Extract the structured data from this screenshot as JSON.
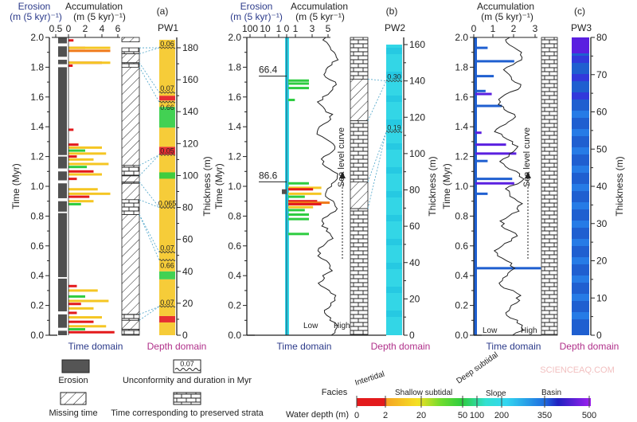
{
  "colors": {
    "erosion": "#505050",
    "red": "#e31a1c",
    "orange": "#f07a1a",
    "yellow": "#f5c623",
    "green": "#2ecc40",
    "cyan": "#33d6e6",
    "blue": "#1f5fd0",
    "purple": "#5a1fe0",
    "axisBlue": "#2b3a8a",
    "domainPink": "#b0308a",
    "corr": "#4aa3c8"
  },
  "panels": {
    "a": {
      "label": "(a)",
      "well": "PW1",
      "erosion_title": "Erosion",
      "erosion_unit": "(m (5 kyr)⁻¹)",
      "acc_title": "Accumulation",
      "acc_unit": "(m (5 kyr)⁻¹)",
      "time_domain": "Time domain",
      "depth_domain": "Depth domain",
      "time_axis": "Time (Myr)",
      "thickness_axis": "Thickness (m)"
    },
    "b": {
      "label": "(b)",
      "well": "PW2",
      "erosion_title": "Erosion",
      "erosion_unit": "(m (5 kyr)⁻¹)",
      "acc_title": "Accumulation",
      "acc_unit": "(m (5 kyr⁻¹)",
      "time_domain": "Time domain",
      "depth_domain": "Depth domain",
      "time_axis": "Time (Myr)",
      "thickness_axis": "Thickness (m)",
      "sea_level": "Sea level curve",
      "low": "Low",
      "high": "High"
    },
    "c": {
      "label": "(c)",
      "well": "PW3",
      "acc_title": "Accumulation",
      "acc_unit": "(m (5 kyr)⁻¹)",
      "time_domain": "Time domain",
      "depth_domain": "Depth domain",
      "time_axis": "Time (Myr)",
      "thickness_axis": "Thickness (m)",
      "sea_level": "Sea level curve",
      "low": "Low",
      "high": "High"
    }
  },
  "legend": {
    "erosion": "Erosion",
    "unconformity": "Unconformity and duration in Myr",
    "unconformity_sample": "0.07",
    "missing": "Missing time",
    "preserved": "Time corresponding to preserved strata"
  },
  "colorbar": {
    "facies_label": "Facies",
    "depth_label": "Water depth (m)",
    "facies": [
      "Intertidal",
      "Shallow subtidal",
      "Deep subtidal",
      "Slope",
      "Basin"
    ],
    "ticks": [
      "0",
      "2",
      "20",
      "50",
      "100",
      "200",
      "350",
      "500"
    ]
  },
  "watermark": "SCIENCEAQ.COM",
  "chart_data": [
    {
      "type": "bar",
      "panel": "a",
      "time_ticks": [
        "0.0",
        "0.2",
        "0.4",
        "0.6",
        "0.8",
        "1.0",
        "1.2",
        "1.4",
        "1.6",
        "1.8",
        "2.0"
      ],
      "thickness_ticks": [
        "0",
        "20",
        "40",
        "60",
        "80",
        "100",
        "120",
        "140",
        "160",
        "180"
      ],
      "erosion_ticks": [
        "0.5"
      ],
      "acc_ticks": [
        "0",
        "2",
        "4",
        "6"
      ],
      "time_range": [
        0,
        2.0
      ],
      "thickness_range": [
        0,
        180
      ],
      "acc_range": [
        0,
        6
      ],
      "erosion_gaps": [
        [
          1.94,
          1.96
        ],
        [
          1.85,
          1.87
        ],
        [
          1.8,
          1.82
        ],
        [
          1.2,
          1.21
        ],
        [
          1.1,
          1.12
        ],
        [
          1.02,
          1.04
        ],
        [
          0.9,
          0.92
        ],
        [
          0.82,
          0.83
        ],
        [
          0.38,
          0.39
        ],
        [
          0.14,
          0.16
        ],
        [
          0.03,
          0.05
        ]
      ],
      "accumulation": [
        [
          1.98,
          0.6,
          "red"
        ],
        [
          1.93,
          2.0,
          "red"
        ],
        [
          1.93,
          5.0,
          "yellow"
        ],
        [
          1.91,
          5.0,
          "orange"
        ],
        [
          1.83,
          4.0,
          "red"
        ],
        [
          1.83,
          5.0,
          "yellow"
        ],
        [
          1.81,
          0.5,
          "red"
        ],
        [
          1.38,
          0.6,
          "red"
        ],
        [
          1.28,
          1.2,
          "red"
        ],
        [
          1.26,
          4.0,
          "yellow"
        ],
        [
          1.24,
          2.0,
          "green"
        ],
        [
          1.22,
          4.5,
          "yellow"
        ],
        [
          1.2,
          1.0,
          "red"
        ],
        [
          1.18,
          3.0,
          "yellow"
        ],
        [
          1.15,
          4.8,
          "yellow"
        ],
        [
          1.13,
          2.2,
          "green"
        ],
        [
          1.1,
          3.0,
          "red"
        ],
        [
          1.08,
          4.0,
          "yellow"
        ],
        [
          1.05,
          1.0,
          "red"
        ],
        [
          0.98,
          3.5,
          "yellow"
        ],
        [
          0.95,
          5.0,
          "yellow"
        ],
        [
          0.93,
          2.5,
          "red"
        ],
        [
          0.9,
          3.0,
          "yellow"
        ],
        [
          0.88,
          1.5,
          "green"
        ],
        [
          0.33,
          1.0,
          "red"
        ],
        [
          0.3,
          3.5,
          "yellow"
        ],
        [
          0.26,
          2.0,
          "green"
        ],
        [
          0.23,
          4.8,
          "yellow"
        ],
        [
          0.21,
          1.5,
          "red"
        ],
        [
          0.18,
          3.0,
          "yellow"
        ],
        [
          0.15,
          1.0,
          "red"
        ],
        [
          0.12,
          4.0,
          "yellow"
        ],
        [
          0.09,
          3.0,
          "red"
        ],
        [
          0.06,
          4.5,
          "yellow"
        ],
        [
          0.04,
          2.0,
          "green"
        ],
        [
          0.02,
          5.5,
          "red"
        ]
      ],
      "column": [
        [
          "hatch",
          1.97,
          2.0
        ],
        [
          "brick",
          1.89,
          1.93
        ],
        [
          "hatch",
          1.83,
          1.89
        ],
        [
          "brick",
          1.8,
          1.83
        ],
        [
          "hatch",
          1.14,
          1.8
        ],
        [
          "brick",
          1.07,
          1.14
        ],
        [
          "hatch",
          1.03,
          1.07
        ],
        [
          "brick",
          1.02,
          1.03
        ],
        [
          "hatch",
          0.91,
          1.02
        ],
        [
          "brick",
          0.81,
          0.91
        ],
        [
          "hatch",
          0.14,
          0.81
        ],
        [
          "brick",
          0.1,
          0.14
        ],
        [
          "hatch",
          0.04,
          0.1
        ],
        [
          "brick",
          0.0,
          0.04
        ]
      ],
      "depth_bands": [
        [
          0,
          8,
          "yellow"
        ],
        [
          8,
          12,
          "red"
        ],
        [
          12,
          35,
          "yellow"
        ],
        [
          35,
          40,
          "green"
        ],
        [
          40,
          113,
          "yellow"
        ],
        [
          98,
          102,
          "green"
        ],
        [
          113,
          118,
          "red"
        ],
        [
          118,
          130,
          "yellow"
        ],
        [
          130,
          143,
          "green"
        ],
        [
          143,
          147,
          "yellow"
        ],
        [
          147,
          150,
          "red"
        ],
        [
          150,
          185,
          "yellow"
        ]
      ],
      "unconformities": [
        [
          180,
          "0.06"
        ],
        [
          152,
          "0.07"
        ],
        [
          146,
          "0.66"
        ],
        [
          113,
          "0.05"
        ],
        [
          80,
          "0.065"
        ],
        [
          52,
          "0.07"
        ],
        [
          47,
          "0.66"
        ],
        [
          18,
          "0.07"
        ]
      ]
    },
    {
      "type": "bar",
      "panel": "b",
      "time_ticks": [
        "0.0",
        "0.2",
        "0.4",
        "0.6",
        "0.8",
        "1.0",
        "1.2",
        "1.4",
        "1.6",
        "1.8",
        "2.0"
      ],
      "thickness_ticks": [
        "0",
        "20",
        "40",
        "60",
        "80",
        "100",
        "120",
        "140",
        "160"
      ],
      "erosion_ticks": [
        "100",
        "10",
        "1",
        "0"
      ],
      "acc_ticks": [
        "1",
        "3",
        "5"
      ],
      "time_range": [
        0,
        2.0
      ],
      "thickness_range": [
        0,
        160
      ],
      "erosion_annotations": [
        [
          1.74,
          "66.4"
        ],
        [
          1.03,
          "86.6"
        ]
      ],
      "accumulation": [
        [
          1.71,
          2.5,
          "green"
        ],
        [
          1.69,
          2.5,
          "green"
        ],
        [
          1.66,
          2.5,
          "green"
        ],
        [
          1.58,
          0.8,
          "green"
        ],
        [
          1.02,
          2.5,
          "green"
        ],
        [
          0.99,
          4.0,
          "yellow"
        ],
        [
          0.98,
          3.0,
          "red"
        ],
        [
          0.95,
          4.0,
          "yellow"
        ],
        [
          0.93,
          2.0,
          "green"
        ],
        [
          0.9,
          3.5,
          "red"
        ],
        [
          0.89,
          5.0,
          "orange"
        ],
        [
          0.88,
          4.0,
          "red"
        ],
        [
          0.86,
          3.0,
          "yellow"
        ],
        [
          0.84,
          2.0,
          "green"
        ],
        [
          0.81,
          2.5,
          "green"
        ],
        [
          0.78,
          2.5,
          "green"
        ],
        [
          0.68,
          2.5,
          "green"
        ]
      ],
      "column": [
        [
          "brick",
          1.72,
          2.0
        ],
        [
          "hatch",
          1.44,
          1.72
        ],
        [
          "brick",
          1.03,
          1.44
        ],
        [
          "hatch",
          0.85,
          1.03
        ],
        [
          "brick",
          0.0,
          0.85
        ]
      ],
      "unconformities": [
        [
          140,
          "0.30"
        ],
        [
          112,
          "0.19"
        ]
      ]
    },
    {
      "type": "bar",
      "panel": "c",
      "time_ticks": [
        "0.0",
        "0.2",
        "0.4",
        "0.6",
        "0.8",
        "1.0",
        "1.2",
        "1.4",
        "1.6",
        "1.8",
        "2.0"
      ],
      "thickness_ticks": [
        "0",
        "10",
        "20",
        "30",
        "40",
        "50",
        "60",
        "70",
        "80"
      ],
      "acc_ticks": [
        "0",
        "1",
        "2",
        "3"
      ],
      "time_range": [
        0,
        2.0
      ],
      "thickness_range": [
        0,
        80
      ],
      "accumulation": [
        [
          1.93,
          0.6,
          "blue"
        ],
        [
          1.84,
          1.9,
          "blue"
        ],
        [
          1.74,
          0.9,
          "blue"
        ],
        [
          1.64,
          0.5,
          "blue"
        ],
        [
          1.62,
          0.8,
          "purple"
        ],
        [
          1.54,
          1.3,
          "blue"
        ],
        [
          1.36,
          0.3,
          "purple"
        ],
        [
          1.28,
          1.5,
          "purple"
        ],
        [
          1.22,
          2.0,
          "purple"
        ],
        [
          1.17,
          0.6,
          "blue"
        ],
        [
          1.05,
          1.8,
          "blue"
        ],
        [
          1.02,
          1.9,
          "purple"
        ],
        [
          0.95,
          0.6,
          "blue"
        ],
        [
          0.45,
          3.2,
          "blue"
        ]
      ],
      "column": [
        [
          "brick",
          0.0,
          2.0
        ]
      ]
    }
  ]
}
